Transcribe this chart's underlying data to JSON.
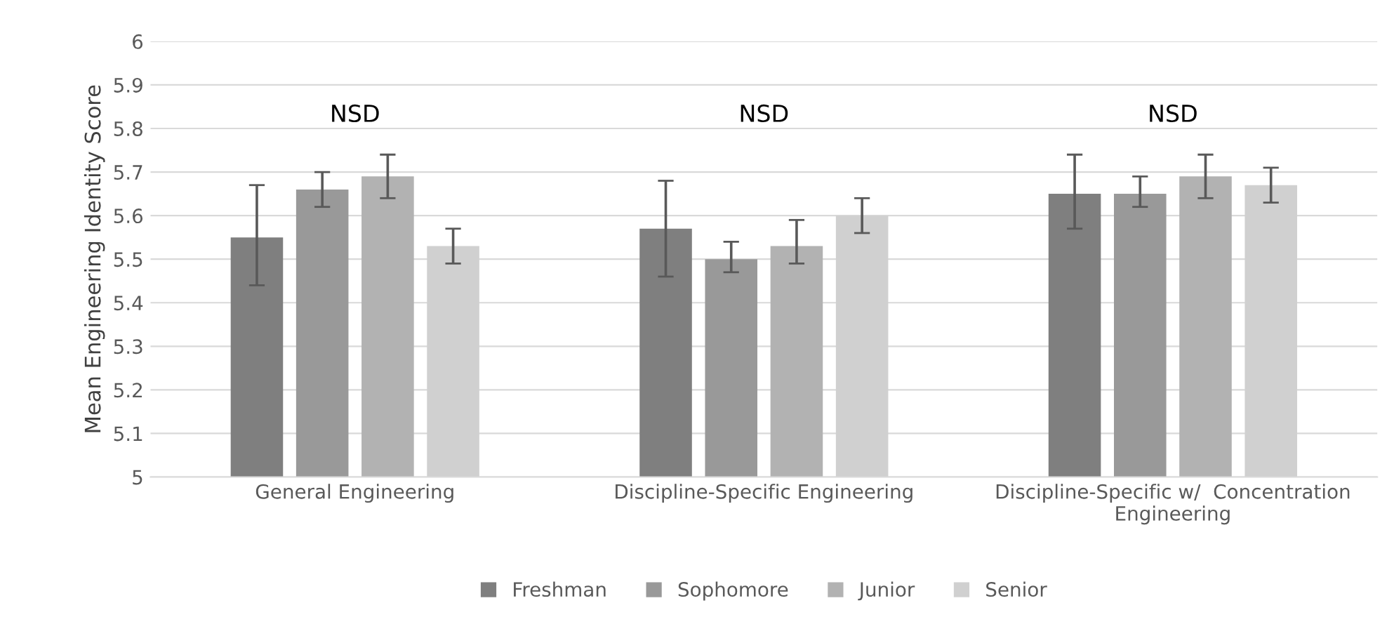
{
  "chart_data": {
    "type": "bar",
    "ylabel": "Mean Engineering Identity Score",
    "categories": [
      "General Engineering",
      "Discipline-Specific Engineering",
      "Discipline-Specific w/  Concentration\nEngineering"
    ],
    "series": [
      {
        "name": "Freshman",
        "color": "#7f7f7f",
        "values": [
          5.55,
          5.57,
          5.65
        ],
        "errors": [
          [
            5.44,
            5.67
          ],
          [
            5.46,
            5.68
          ],
          [
            5.57,
            5.74
          ]
        ]
      },
      {
        "name": "Sophomore",
        "color": "#999999",
        "values": [
          5.66,
          5.5,
          5.65
        ],
        "errors": [
          [
            5.62,
            5.7
          ],
          [
            5.47,
            5.54
          ],
          [
            5.62,
            5.69
          ]
        ]
      },
      {
        "name": "Junior",
        "color": "#b2b2b2",
        "values": [
          5.69,
          5.53,
          5.69
        ],
        "errors": [
          [
            5.64,
            5.74
          ],
          [
            5.49,
            5.59
          ],
          [
            5.64,
            5.74
          ]
        ]
      },
      {
        "name": "Senior",
        "color": "#d0d0d0",
        "values": [
          5.53,
          5.6,
          5.67
        ],
        "errors": [
          [
            5.49,
            5.57
          ],
          [
            5.56,
            5.64
          ],
          [
            5.63,
            5.71
          ]
        ]
      }
    ],
    "annotations": [
      "NSD",
      "NSD",
      "NSD"
    ],
    "ylim": [
      5,
      6
    ],
    "yticks": [
      5,
      {
        "value": 5.1,
        "label": "5.1"
      },
      {
        "value": 5.2,
        "label": "5.2"
      },
      {
        "value": 5.3,
        "label": "5.3"
      },
      {
        "value": 5.4,
        "label": "5.4"
      },
      {
        "value": 5.5,
        "label": "5.5"
      },
      {
        "value": 5.6,
        "label": "5.6"
      },
      {
        "value": 5.7,
        "label": "5.7"
      },
      {
        "value": 5.8,
        "label": "5.8"
      },
      {
        "value": 5.9,
        "label": "5.9"
      },
      6
    ],
    "grid": "y",
    "legend": "bottom"
  }
}
